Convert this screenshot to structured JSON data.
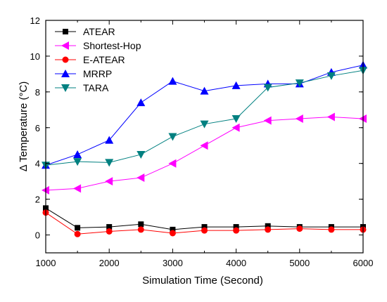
{
  "chart_data": {
    "type": "line",
    "title": "",
    "xlabel": "Simulation Time (Second)",
    "ylabel": "Δ Temperature (°C)",
    "xlim": [
      1000,
      6000
    ],
    "ylim": [
      -1,
      12
    ],
    "x_ticks": [
      1000,
      2000,
      3000,
      4000,
      5000,
      6000
    ],
    "y_ticks": [
      0,
      2,
      4,
      6,
      8,
      10,
      12
    ],
    "grid": false,
    "legend_position": "top-left",
    "x": [
      1000,
      1500,
      2000,
      2500,
      3000,
      3500,
      4000,
      4500,
      5000,
      5500,
      6000
    ],
    "series": [
      {
        "name": "ATEAR",
        "color": "#000000",
        "marker": "square",
        "values": [
          1.5,
          0.4,
          0.45,
          0.6,
          0.3,
          0.45,
          0.45,
          0.5,
          0.45,
          0.45,
          0.45
        ]
      },
      {
        "name": "Shortest-Hop",
        "color": "#ff00ff",
        "marker": "triangle-left",
        "values": [
          2.5,
          2.6,
          3.0,
          3.2,
          4.0,
          5.0,
          6.0,
          6.4,
          6.5,
          6.6,
          6.5
        ]
      },
      {
        "name": "E-ATEAR",
        "color": "#ff0000",
        "marker": "circle",
        "values": [
          1.25,
          0.05,
          0.2,
          0.3,
          0.1,
          0.25,
          0.25,
          0.3,
          0.35,
          0.3,
          0.3
        ]
      },
      {
        "name": "MRRP",
        "color": "#0000ff",
        "marker": "triangle-up",
        "values": [
          3.9,
          4.5,
          5.3,
          7.4,
          8.6,
          8.05,
          8.35,
          8.45,
          8.45,
          9.1,
          9.5
        ]
      },
      {
        "name": "TARA",
        "color": "#008080",
        "marker": "triangle-down",
        "values": [
          3.9,
          4.1,
          4.05,
          4.5,
          5.5,
          6.2,
          6.5,
          8.25,
          8.5,
          8.9,
          9.2
        ]
      }
    ]
  }
}
